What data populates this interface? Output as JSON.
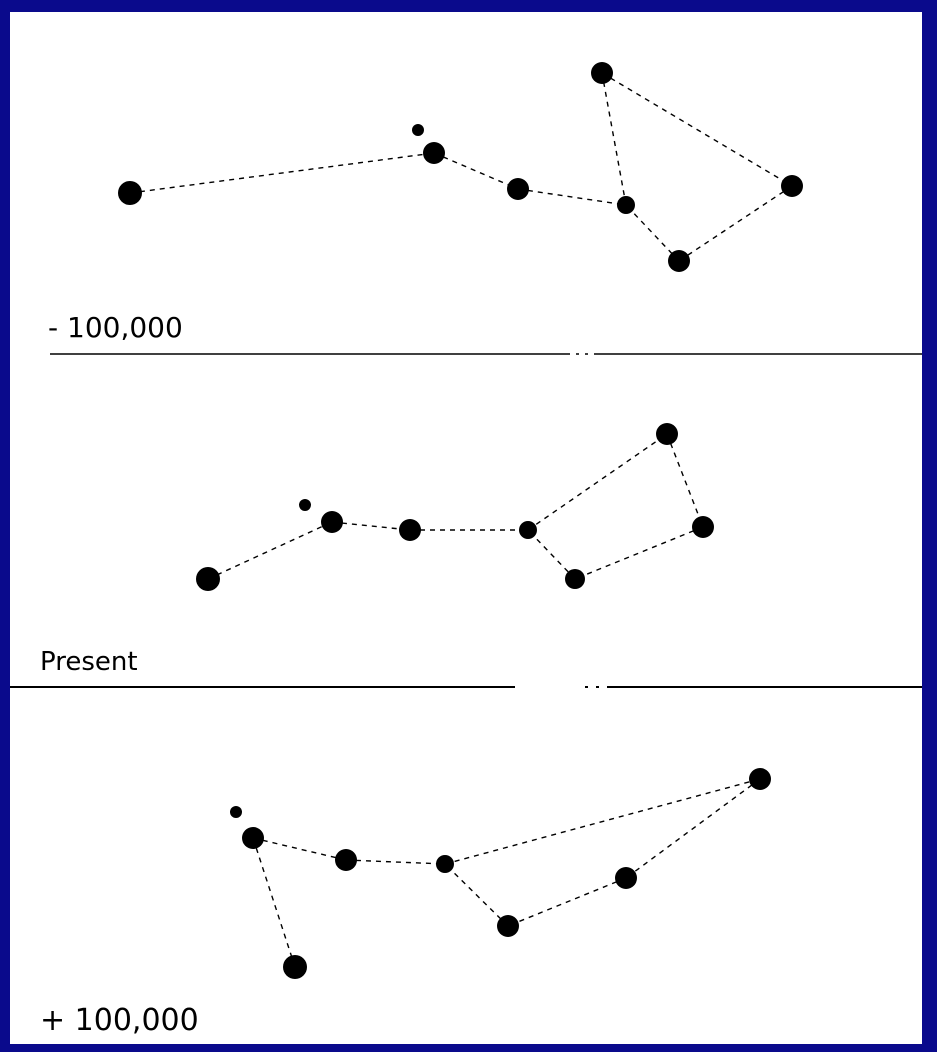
{
  "colors": {
    "background": "#0a0a8c",
    "panel": "#ffffff",
    "ink": "#000000"
  },
  "panels": [
    {
      "id": "past",
      "label": "- 100,000",
      "stars": [
        {
          "id": "tip",
          "size": "large"
        },
        {
          "id": "star2",
          "size": "small"
        },
        {
          "id": "star2-companion",
          "size": "tiny"
        },
        {
          "id": "star3",
          "size": "medium"
        },
        {
          "id": "star4",
          "size": "small"
        },
        {
          "id": "star5",
          "size": "medium"
        },
        {
          "id": "star6",
          "size": "medium"
        },
        {
          "id": "star7",
          "size": "medium"
        }
      ]
    },
    {
      "id": "present",
      "label": "Present",
      "stars": [
        {
          "id": "tip",
          "size": "large"
        },
        {
          "id": "star2",
          "size": "medium"
        },
        {
          "id": "star2-companion",
          "size": "tiny"
        },
        {
          "id": "star3",
          "size": "medium"
        },
        {
          "id": "star4",
          "size": "small"
        },
        {
          "id": "star5",
          "size": "small"
        },
        {
          "id": "star6",
          "size": "medium"
        },
        {
          "id": "star7",
          "size": "medium"
        }
      ]
    },
    {
      "id": "future",
      "label": "+ 100,000",
      "stars": [
        {
          "id": "tip",
          "size": "large"
        },
        {
          "id": "star2",
          "size": "medium"
        },
        {
          "id": "star2-companion",
          "size": "tiny"
        },
        {
          "id": "star3",
          "size": "medium"
        },
        {
          "id": "star4",
          "size": "small"
        },
        {
          "id": "star5",
          "size": "medium"
        },
        {
          "id": "star6",
          "size": "medium"
        },
        {
          "id": "star7",
          "size": "medium"
        }
      ]
    }
  ]
}
